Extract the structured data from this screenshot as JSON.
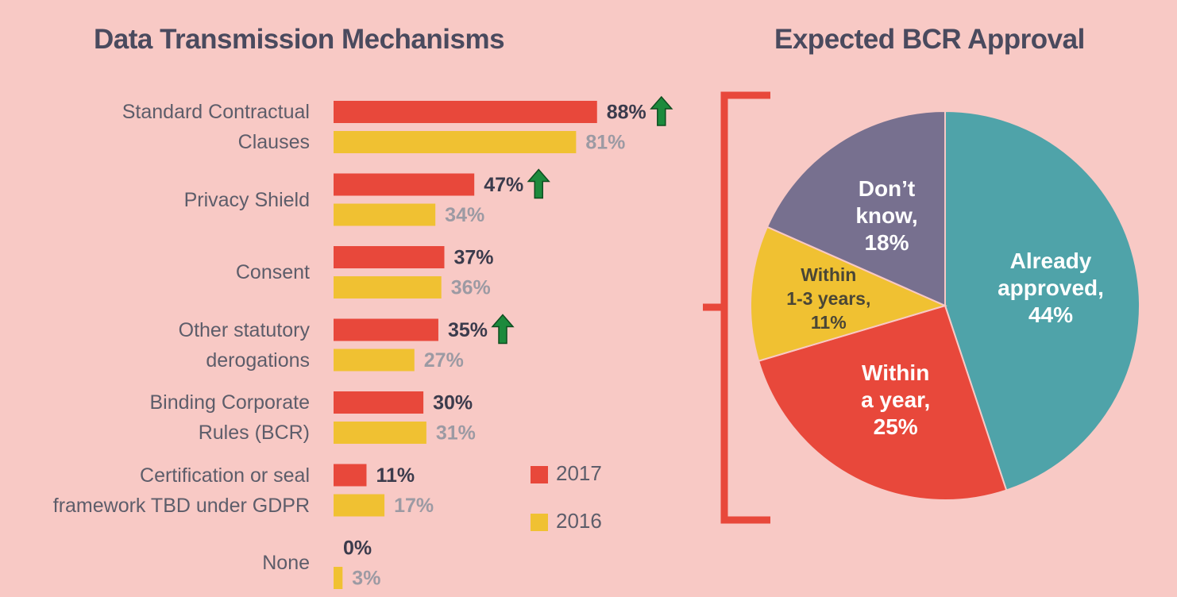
{
  "chart_data": [
    {
      "type": "bar",
      "orientation": "horizontal",
      "title": "Data Transmission Mechanisms",
      "categories": [
        "Standard Contractual\nClauses",
        "Privacy Shield",
        "Consent",
        "Other statutory\nderogations",
        "Binding Corporate\nRules (BCR)",
        "Certification or seal\nframework TBD under GDPR",
        "None"
      ],
      "series": [
        {
          "name": "2017",
          "color": "#e8483b",
          "values": [
            88,
            47,
            37,
            35,
            30,
            11,
            0
          ],
          "value_labels": [
            "88%",
            "47%",
            "37%",
            "35%",
            "30%",
            "11%",
            "0%"
          ],
          "increase": [
            true,
            true,
            false,
            true,
            false,
            false,
            false
          ]
        },
        {
          "name": "2016",
          "color": "#f0c132",
          "values": [
            81,
            34,
            36,
            27,
            31,
            17,
            3
          ],
          "value_labels": [
            "81%",
            "34%",
            "36%",
            "27%",
            "31%",
            "17%",
            "3%"
          ]
        }
      ],
      "xlim": [
        0,
        100
      ],
      "legend": "bottom-right"
    },
    {
      "type": "pie",
      "title": "Expected BCR Approval",
      "categories": [
        "Already\napproved,",
        "Within\na year,",
        "Within\n1-3 years,",
        "Don’t\nknow,"
      ],
      "values": [
        44,
        25,
        11,
        18
      ],
      "value_labels": [
        "44%",
        "25%",
        "11%",
        "18%"
      ],
      "colors": [
        "#4fa3a9",
        "#e8483b",
        "#f0c132",
        "#77708f"
      ],
      "label_colors": [
        "#ffffff",
        "#ffffff",
        "#4a4636",
        "#ffffff"
      ]
    }
  ]
}
